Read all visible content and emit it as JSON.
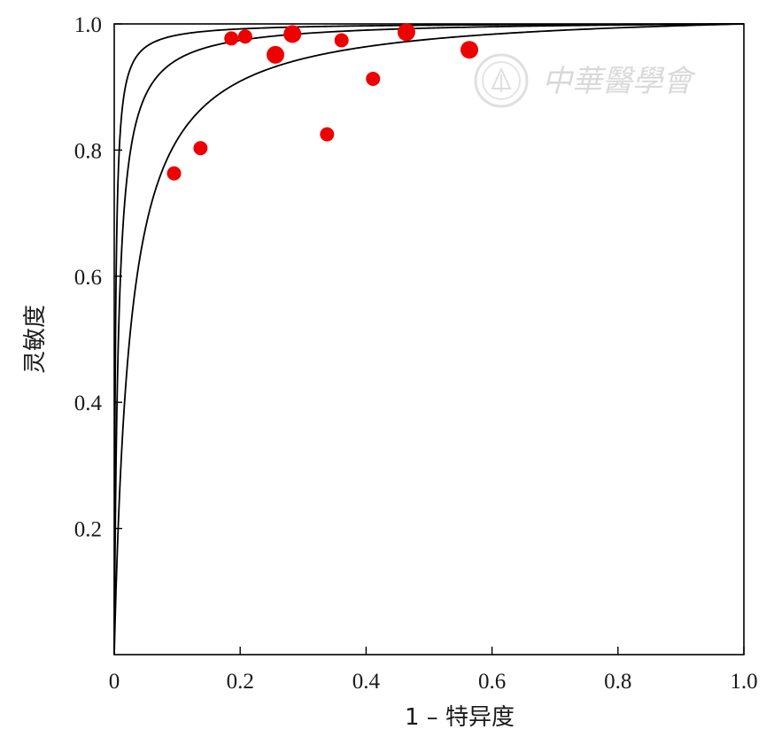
{
  "chart_data": {
    "type": "scatter",
    "title": "",
    "xlabel": "1 – 特异度",
    "ylabel": "灵敏度",
    "xlim": [
      0,
      1
    ],
    "ylim": [
      0,
      1
    ],
    "x_ticks": [
      "0",
      "0.2",
      "0.4",
      "0.6",
      "0.8",
      "1.0"
    ],
    "y_ticks": [
      "0.2",
      "0.4",
      "0.6",
      "0.8",
      "1.0"
    ],
    "x_tick_values": [
      0,
      0.2,
      0.4,
      0.6,
      0.8,
      1.0
    ],
    "y_tick_values": [
      0.2,
      0.4,
      0.6,
      0.8,
      1.0
    ],
    "grid": false,
    "points": [
      {
        "x": 0.095,
        "y": 0.763,
        "size": "small"
      },
      {
        "x": 0.137,
        "y": 0.803,
        "size": "small"
      },
      {
        "x": 0.186,
        "y": 0.977,
        "size": "small"
      },
      {
        "x": 0.208,
        "y": 0.98,
        "size": "small"
      },
      {
        "x": 0.256,
        "y": 0.951,
        "size": "large"
      },
      {
        "x": 0.283,
        "y": 0.984,
        "size": "large"
      },
      {
        "x": 0.338,
        "y": 0.825,
        "size": "small"
      },
      {
        "x": 0.361,
        "y": 0.974,
        "size": "small"
      },
      {
        "x": 0.411,
        "y": 0.913,
        "size": "small"
      },
      {
        "x": 0.464,
        "y": 0.987,
        "size": "large"
      },
      {
        "x": 0.564,
        "y": 0.959,
        "size": "large"
      }
    ],
    "curves": [
      {
        "dor": 500
      },
      {
        "dor": 150
      },
      {
        "dor": 40
      }
    ],
    "point_color": "#ee0000",
    "curve_color": "#000000"
  },
  "watermark": {
    "text": "中華醫學會",
    "color": "#d9d9d9"
  }
}
